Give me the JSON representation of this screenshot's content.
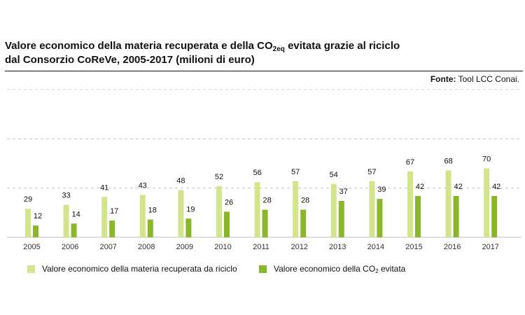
{
  "title": {
    "line1_pre": "Valore economico della materia recuperata e della CO",
    "line1_sub": "2eq",
    "line1_post": " evitata grazie al riciclo",
    "line2": "dal Consorzio CoReVe, 2005-2017 (milioni di euro)"
  },
  "source": {
    "label": "Fonte:",
    "text": " Tool LCC Conai."
  },
  "legend": {
    "item1": "Valore economico della materia recuperata da riciclo",
    "item2_pre": "Valore economico della CO",
    "item2_sub": "2",
    "item2_post": " evitata"
  },
  "colors": {
    "series1": "#d3e58a",
    "series2": "#8ab62a",
    "grid": "#c8c8c8",
    "axis": "#bdbdbd"
  },
  "chart_data": {
    "type": "bar",
    "categories": [
      "2005",
      "2006",
      "2007",
      "2008",
      "2009",
      "2010",
      "2011",
      "2012",
      "2013",
      "2014",
      "2015",
      "2016",
      "2017"
    ],
    "series": [
      {
        "name": "Valore economico della materia recuperata da riciclo",
        "values": [
          29,
          33,
          41,
          43,
          48,
          52,
          56,
          57,
          54,
          57,
          67,
          68,
          70
        ]
      },
      {
        "name": "Valore economico della CO2 evitata",
        "values": [
          12,
          14,
          17,
          18,
          19,
          26,
          28,
          28,
          37,
          39,
          42,
          42,
          42
        ]
      }
    ],
    "ylim": [
      0,
      150
    ],
    "grid": true,
    "legend_position": "bottom"
  }
}
